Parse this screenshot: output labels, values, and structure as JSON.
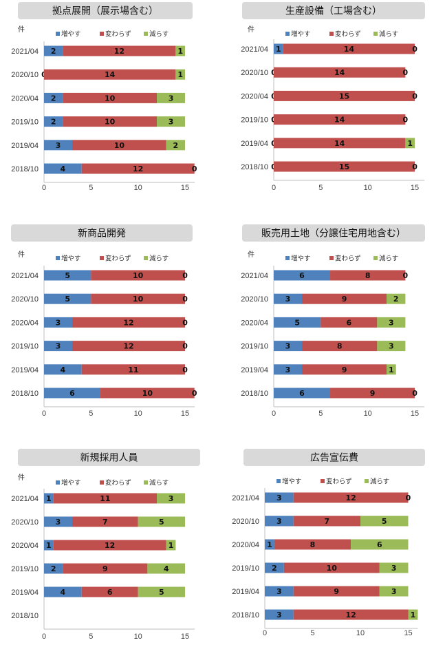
{
  "colors": {
    "increase": "#4f81bd",
    "same": "#c0504d",
    "decrease": "#9bbb59",
    "title_bg": "#d9d9d9"
  },
  "chart_data": [
    {
      "type": "bar",
      "orientation": "horizontal",
      "stacked": true,
      "title": "拠点展開（展示場含む）",
      "unit_label": "件",
      "legend": [
        "増やす",
        "変わらず",
        "減らす"
      ],
      "legend_position": "top",
      "xlim": [
        0,
        15
      ],
      "xticks": [
        0,
        5,
        10,
        15
      ],
      "categories": [
        "2021/04",
        "2020/10",
        "2020/04",
        "2019/10",
        "2019/04",
        "2018/10"
      ],
      "series": [
        {
          "name": "増やす",
          "values": [
            2,
            0,
            2,
            2,
            3,
            4
          ]
        },
        {
          "name": "変わらず",
          "values": [
            12,
            14,
            10,
            10,
            10,
            12
          ]
        },
        {
          "name": "減らす",
          "values": [
            1,
            1,
            3,
            3,
            2,
            0
          ]
        }
      ]
    },
    {
      "type": "bar",
      "orientation": "horizontal",
      "stacked": true,
      "title": "生産設備（工場含む）",
      "unit_label": "件",
      "legend": [
        "増やす",
        "変わらず",
        "減らす"
      ],
      "legend_position": "top",
      "xlim": [
        0,
        15
      ],
      "xticks": [
        0,
        5,
        10,
        15
      ],
      "categories": [
        "2021/04",
        "2020/10",
        "2020/04",
        "2019/10",
        "2019/04",
        "2018/10"
      ],
      "series": [
        {
          "name": "増やす",
          "values": [
            1,
            0,
            0,
            0,
            0,
            0
          ]
        },
        {
          "name": "変わらず",
          "values": [
            14,
            14,
            15,
            14,
            14,
            15
          ]
        },
        {
          "name": "減らす",
          "values": [
            0,
            0,
            0,
            0,
            1,
            0
          ]
        }
      ]
    },
    {
      "type": "bar",
      "orientation": "horizontal",
      "stacked": true,
      "title": "新商品開発",
      "unit_label": "件",
      "legend": [
        "増やす",
        "変わらず",
        "減らす"
      ],
      "legend_position": "top",
      "xlim": [
        0,
        15
      ],
      "xticks": [
        0,
        5,
        10,
        15
      ],
      "categories": [
        "2021/04",
        "2020/10",
        "2020/04",
        "2019/10",
        "2019/04",
        "2018/10"
      ],
      "series": [
        {
          "name": "増やす",
          "values": [
            5,
            5,
            3,
            3,
            4,
            6
          ]
        },
        {
          "name": "変わらず",
          "values": [
            10,
            10,
            12,
            12,
            11,
            10
          ]
        },
        {
          "name": "減らす",
          "values": [
            0,
            0,
            0,
            0,
            0,
            0
          ]
        }
      ]
    },
    {
      "type": "bar",
      "orientation": "horizontal",
      "stacked": true,
      "title": "販売用土地（分譲住宅用地含む）",
      "unit_label": "件",
      "legend": [
        "増やす",
        "変わらず",
        "減らす"
      ],
      "legend_position": "top",
      "xlim": [
        0,
        15
      ],
      "xticks": [
        0,
        5,
        10,
        15
      ],
      "categories": [
        "2021/04",
        "2020/10",
        "2020/04",
        "2019/10",
        "2019/04",
        "2018/10"
      ],
      "series": [
        {
          "name": "増やす",
          "values": [
            6,
            3,
            5,
            3,
            3,
            6
          ]
        },
        {
          "name": "変わらず",
          "values": [
            8,
            9,
            6,
            8,
            9,
            9
          ]
        },
        {
          "name": "減らす",
          "values": [
            0,
            2,
            3,
            3,
            1,
            0
          ]
        }
      ]
    },
    {
      "type": "bar",
      "orientation": "horizontal",
      "stacked": true,
      "title": "新規採用人員",
      "unit_label": "件",
      "legend": [
        "増やす",
        "変わらず",
        "減らす"
      ],
      "legend_position": "top",
      "xlim": [
        0,
        15
      ],
      "xticks": [
        0,
        5,
        10,
        15
      ],
      "categories": [
        "2021/04",
        "2020/10",
        "2020/04",
        "2019/10",
        "2019/04",
        "2018/10"
      ],
      "series": [
        {
          "name": "増やす",
          "values": [
            1,
            3,
            1,
            2,
            4,
            null
          ]
        },
        {
          "name": "変わらず",
          "values": [
            11,
            7,
            12,
            9,
            6,
            null
          ]
        },
        {
          "name": "減らす",
          "values": [
            3,
            5,
            1,
            4,
            5,
            null
          ]
        }
      ]
    },
    {
      "type": "bar",
      "orientation": "horizontal",
      "stacked": true,
      "title": "広告宣伝費",
      "unit_label": "",
      "legend": [
        "増やす",
        "変わらず",
        "減らす"
      ],
      "legend_position": "top",
      "xlim": [
        0,
        15
      ],
      "xticks": [
        0,
        5,
        10,
        15
      ],
      "categories": [
        "2021/04",
        "2020/10",
        "2020/04",
        "2019/10",
        "2019/04",
        "2018/10"
      ],
      "series": [
        {
          "name": "増やす",
          "values": [
            3,
            3,
            1,
            2,
            3,
            3
          ]
        },
        {
          "name": "変わらず",
          "values": [
            12,
            7,
            8,
            10,
            9,
            12
          ]
        },
        {
          "name": "減らす",
          "values": [
            0,
            5,
            6,
            3,
            3,
            1
          ]
        }
      ]
    }
  ]
}
